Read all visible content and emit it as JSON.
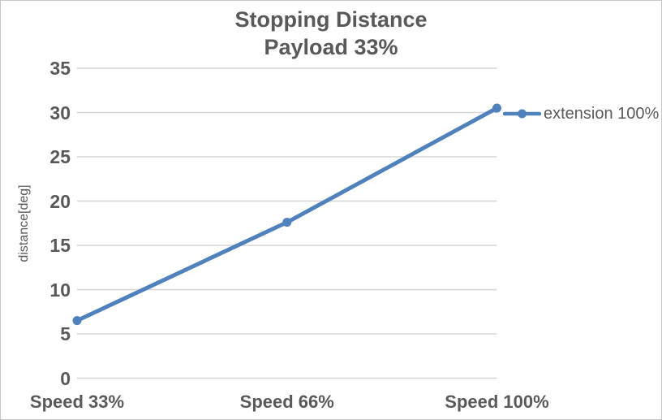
{
  "window": {
    "background": "#FFFFFF",
    "border_color": "#C6C6C6"
  },
  "chart_data": {
    "type": "line",
    "title": "Stopping Distance",
    "subtitle": "Payload 33%",
    "xlabel": "",
    "ylabel": "distance[deg]",
    "categories": [
      "Speed 33%",
      "Speed 66%",
      "Speed 100%"
    ],
    "series": [
      {
        "name": "extension 100%",
        "color": "#4F81BD",
        "marker": "circle",
        "values": [
          6.5,
          17.6,
          30.5
        ]
      }
    ],
    "ylim": [
      0,
      35
    ],
    "ytick_step": 5,
    "yticks": [
      0,
      5,
      10,
      15,
      20,
      25,
      30,
      35
    ],
    "grid": true,
    "gridline_color": "#D6D6D6",
    "text_color": "#595959",
    "legend_position": "right",
    "axis_position": "on-tick-marks"
  }
}
